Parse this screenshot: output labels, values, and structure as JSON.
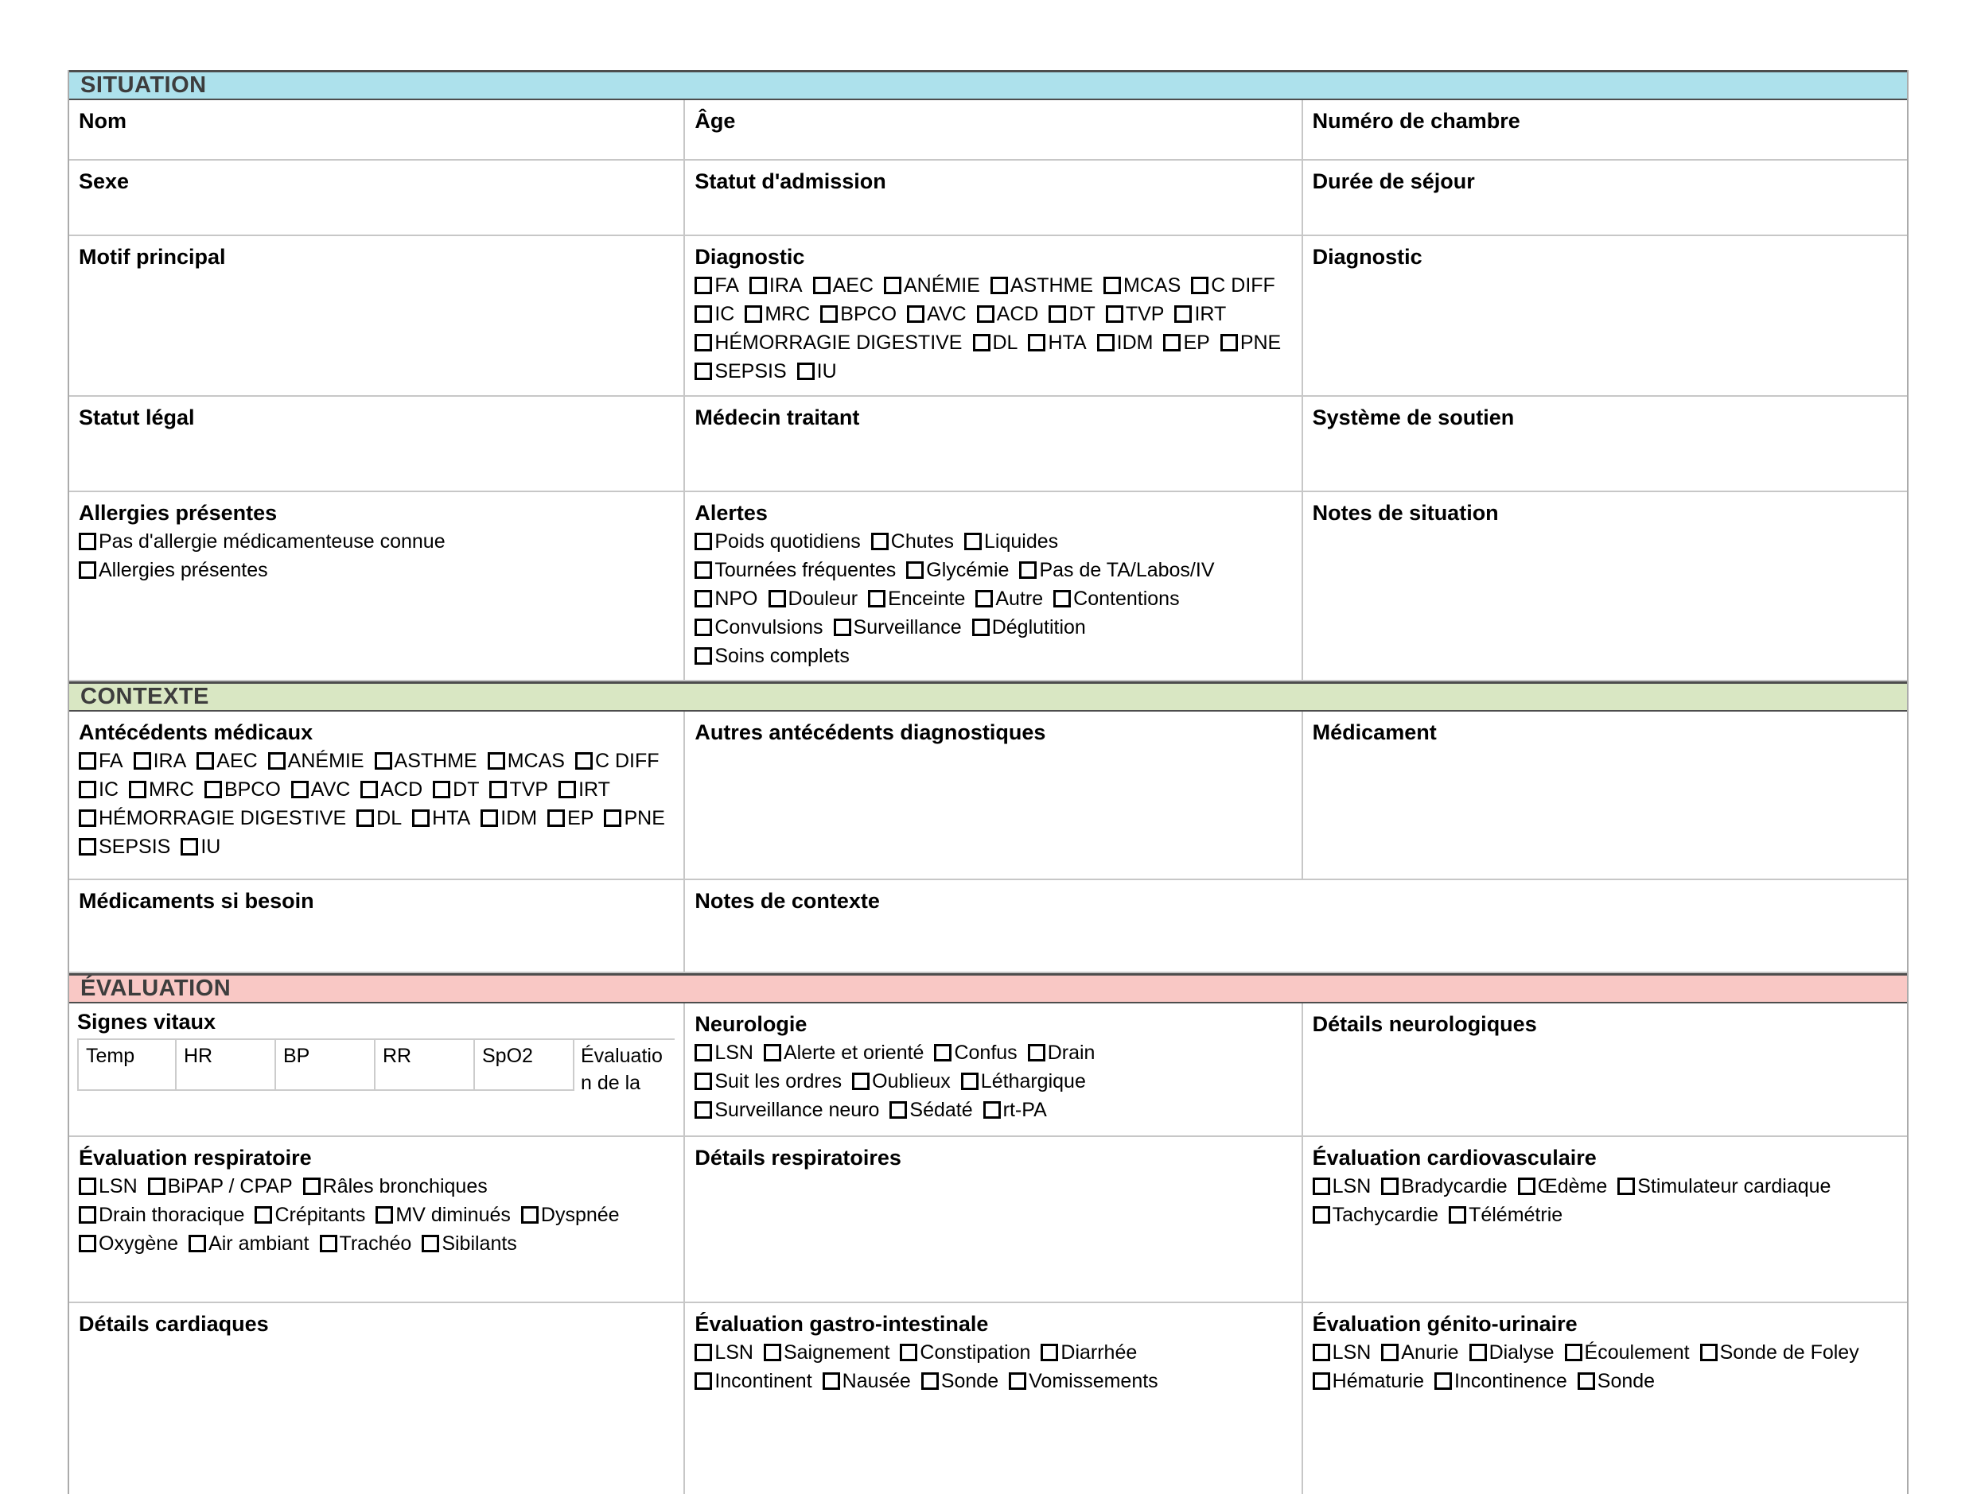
{
  "colors": {
    "situation_bg": "#ade1ec",
    "contexte_bg": "#d9e7c3",
    "evaluation_bg": "#f9c8c5"
  },
  "situation": {
    "title": "SITUATION",
    "nom": "Nom",
    "age": "Âge",
    "numero_chambre": "Numéro de chambre",
    "sexe": "Sexe",
    "statut_admission": "Statut d'admission",
    "duree_sejour": "Durée de séjour",
    "motif_principal": "Motif principal",
    "diagnostic_titre": "Diagnostic",
    "diagnostic_droit": "Diagnostic",
    "diagnostic_options": [
      [
        "FA",
        "IRA",
        "AEC",
        "ANÉMIE",
        "ASTHME",
        "MCAS",
        "C DIFF"
      ],
      [
        "IC",
        "MRC",
        "BPCO",
        "AVC",
        "ACD",
        "DT",
        "TVP",
        "IRT"
      ],
      [
        "HÉMORRAGIE DIGESTIVE",
        "DL",
        "HTA",
        "IDM",
        "EP",
        "PNE"
      ],
      [
        "SEPSIS",
        "IU"
      ]
    ],
    "statut_legal": "Statut légal",
    "medecin_traitant": "Médecin traitant",
    "systeme_soutien": "Système de soutien",
    "allergies_titre": "Allergies présentes",
    "allergies_options": [
      [
        "Pas d'allergie médicamenteuse connue"
      ],
      [
        "Allergies présentes"
      ]
    ],
    "alertes_titre": "Alertes",
    "alertes_options": [
      [
        "Poids quotidiens",
        "Chutes",
        "Liquides"
      ],
      [
        "Tournées fréquentes",
        "Glycémie",
        "Pas de TA/Labos/IV"
      ],
      [
        "NPO",
        "Douleur",
        "Enceinte",
        "Autre",
        "Contentions"
      ],
      [
        "Convulsions",
        "Surveillance",
        "Déglutition"
      ],
      [
        "Soins complets"
      ]
    ],
    "notes_situation": "Notes de situation"
  },
  "contexte": {
    "title": "CONTEXTE",
    "antecedents_titre": "Antécédents médicaux",
    "antecedents_options": [
      [
        "FA",
        "IRA",
        "AEC",
        "ANÉMIE",
        "ASTHME",
        "MCAS",
        "C DIFF"
      ],
      [
        "IC",
        "MRC",
        "BPCO",
        "AVC",
        "ACD",
        "DT",
        "TVP",
        "IRT"
      ],
      [
        "HÉMORRAGIE DIGESTIVE",
        "DL",
        "HTA",
        "IDM",
        "EP",
        "PNE"
      ],
      [
        "SEPSIS",
        "IU"
      ]
    ],
    "autres_antecedents": "Autres antécédents diagnostiques",
    "medicament": "Médicament",
    "medicaments_si_besoin": "Médicaments si besoin",
    "notes_contexte": "Notes de contexte"
  },
  "evaluation": {
    "title": "ÉVALUATION",
    "signes_vitaux": "Signes vitaux",
    "vitals_colonnes": [
      "Temp",
      "HR",
      "BP",
      "RR",
      "SpO2",
      "Évaluation de la"
    ],
    "neurologie_titre": "Neurologie",
    "neurologie_options": [
      [
        "LSN",
        "Alerte et orienté",
        "Confus",
        "Drain"
      ],
      [
        "Suit les ordres",
        "Oublieux",
        "Léthargique"
      ],
      [
        "Surveillance neuro",
        "Sédaté",
        "rt-PA"
      ]
    ],
    "details_neurologiques": "Détails neurologiques",
    "eval_respiratoire_titre": "Évaluation respiratoire",
    "respiratoire_options": [
      [
        "LSN",
        "BiPAP / CPAP",
        "Râles bronchiques"
      ],
      [
        "Drain thoracique",
        "Crépitants",
        "MV diminués",
        "Dyspnée"
      ],
      [
        "Oxygène",
        "Air ambiant",
        "Trachéo",
        "Sibilants"
      ]
    ],
    "details_respiratoires": "Détails respiratoires",
    "eval_cardio_titre": "Évaluation cardiovasculaire",
    "cardio_options": [
      [
        "LSN",
        "Bradycardie",
        "Œdème",
        "Stimulateur cardiaque"
      ],
      [
        "Tachycardie",
        "Télémétrie"
      ]
    ],
    "details_cardiaques": "Détails cardiaques",
    "eval_gi_titre": "Évaluation gastro-intestinale",
    "gi_options": [
      [
        "LSN",
        "Saignement",
        "Constipation",
        "Diarrhée"
      ],
      [
        "Incontinent",
        "Nausée",
        "Sonde",
        "Vomissements"
      ]
    ],
    "eval_gu_titre": "Évaluation génito-urinaire",
    "gu_options": [
      [
        "LSN",
        "Anurie",
        "Dialyse",
        "Écoulement",
        "Sonde de Foley"
      ],
      [
        "Hématurie",
        "Incontinence",
        "Sonde"
      ]
    ]
  }
}
